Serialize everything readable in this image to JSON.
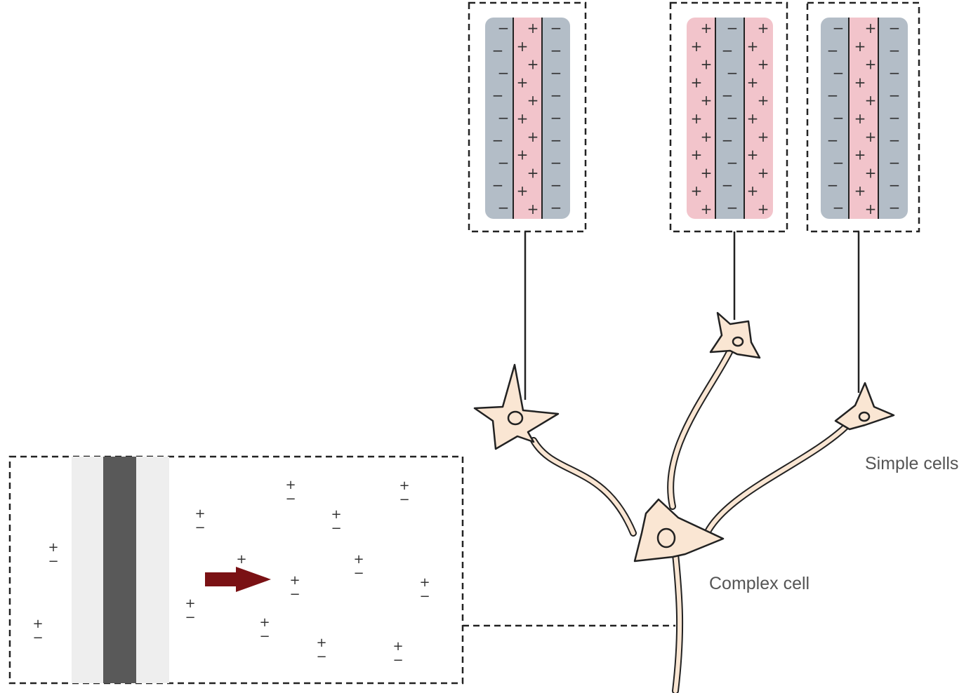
{
  "labels": {
    "simple_cells": "Simple cells",
    "complex_cell": "Complex cell"
  },
  "symbols": {
    "excitatory": "+",
    "inhibitory": "−"
  },
  "colors": {
    "on_region": "#f2c4cb",
    "off_region": "#b3bdc7",
    "cell_fill": "#fae6d3",
    "stimulus_bar": "#595959",
    "stimulus_flank": "#eeeeee",
    "motion_arrow": "#7a1114"
  },
  "simple_cell_fields": [
    {
      "id": "rf-1",
      "regions": [
        "−",
        "+",
        "−"
      ]
    },
    {
      "id": "rf-2",
      "regions": [
        "+",
        "−",
        "+"
      ]
    },
    {
      "id": "rf-3",
      "regions": [
        "−",
        "+",
        "−"
      ]
    }
  ],
  "complex_field": {
    "stimulus": "dark bar",
    "motion": "rightward"
  }
}
